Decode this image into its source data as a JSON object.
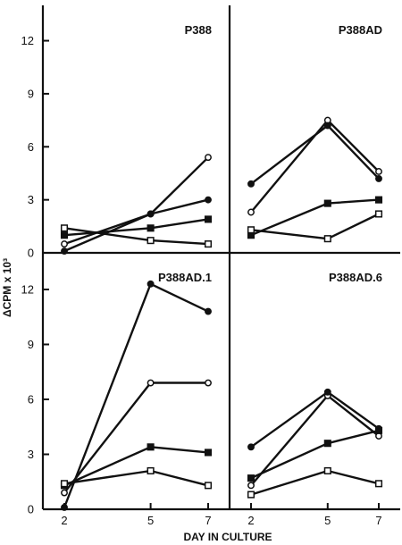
{
  "figure": {
    "ylabel": "ΔCPM x 10³",
    "xlabel": "DAY IN CULTURE"
  },
  "chart_data": [
    {
      "type": "line",
      "title": "P388",
      "x": [
        2,
        5,
        7
      ],
      "ylim": [
        0,
        14
      ],
      "yticks": [
        0,
        3,
        6,
        9,
        12
      ],
      "series": [
        {
          "marker": "open-circle",
          "values": [
            0.5,
            2.2,
            5.4
          ]
        },
        {
          "marker": "filled-circle",
          "values": [
            0.1,
            2.2,
            3.0
          ]
        },
        {
          "marker": "filled-square",
          "values": [
            1.0,
            1.4,
            1.9
          ]
        },
        {
          "marker": "open-square",
          "values": [
            1.4,
            0.7,
            0.5
          ]
        }
      ]
    },
    {
      "type": "line",
      "title": "P388AD",
      "x": [
        2,
        5,
        7
      ],
      "ylim": [
        0,
        14
      ],
      "yticks": [
        0,
        3,
        6,
        9,
        12
      ],
      "series": [
        {
          "marker": "open-circle",
          "values": [
            2.3,
            7.5,
            4.6
          ]
        },
        {
          "marker": "filled-circle",
          "values": [
            3.9,
            7.2,
            4.2
          ]
        },
        {
          "marker": "filled-square",
          "values": [
            1.0,
            2.8,
            3.0
          ]
        },
        {
          "marker": "open-square",
          "values": [
            1.3,
            0.8,
            2.2
          ]
        }
      ]
    },
    {
      "type": "line",
      "title": "P388AD.1",
      "x": [
        2,
        5,
        7
      ],
      "ylim": [
        0,
        14
      ],
      "yticks": [
        0,
        3,
        6,
        9,
        12
      ],
      "series": [
        {
          "marker": "open-circle",
          "values": [
            0.9,
            6.9,
            6.9
          ]
        },
        {
          "marker": "filled-circle",
          "values": [
            0.1,
            12.3,
            10.8
          ]
        },
        {
          "marker": "filled-square",
          "values": [
            1.3,
            3.4,
            3.1
          ]
        },
        {
          "marker": "open-square",
          "values": [
            1.4,
            2.1,
            1.3
          ]
        }
      ]
    },
    {
      "type": "line",
      "title": "P388AD.6",
      "x": [
        2,
        5,
        7
      ],
      "ylim": [
        0,
        14
      ],
      "yticks": [
        0,
        3,
        6,
        9,
        12
      ],
      "series": [
        {
          "marker": "open-circle",
          "values": [
            1.3,
            6.2,
            4.0
          ]
        },
        {
          "marker": "filled-circle",
          "values": [
            3.4,
            6.4,
            4.4
          ]
        },
        {
          "marker": "filled-square",
          "values": [
            1.7,
            3.6,
            4.3
          ]
        },
        {
          "marker": "open-square",
          "values": [
            0.8,
            2.1,
            1.4
          ]
        }
      ]
    }
  ]
}
